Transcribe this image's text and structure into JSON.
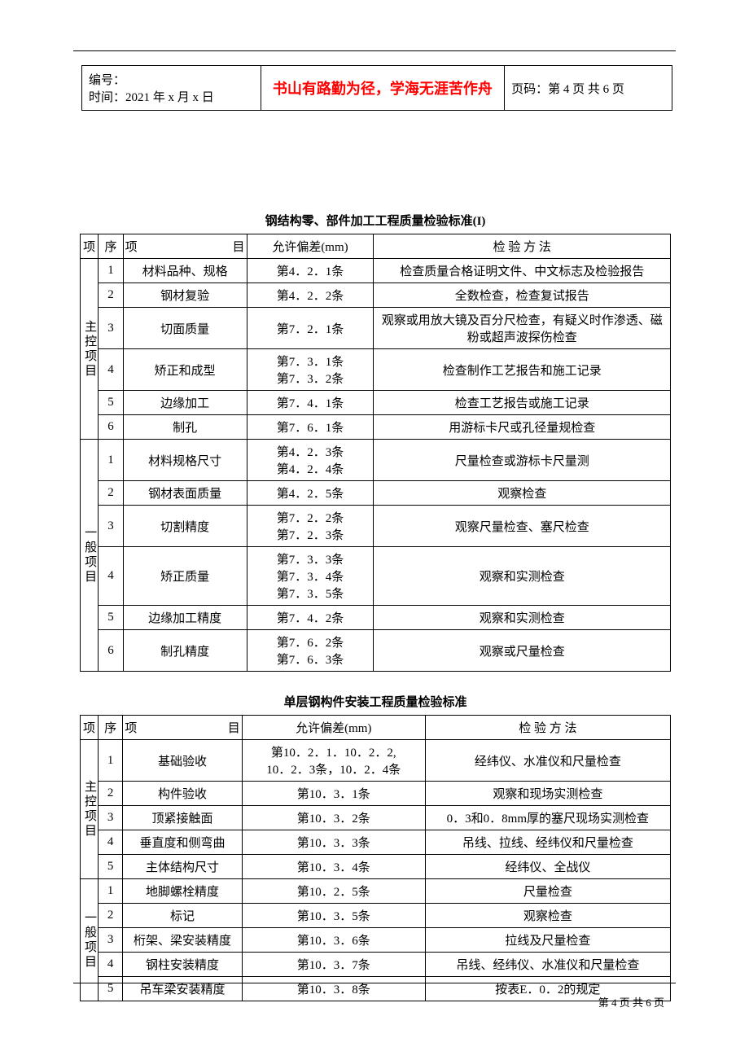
{
  "header": {
    "doc_id_label": "编号：",
    "time_label": "时间：2021 年 x 月 x 日",
    "motto": "书山有路勤为径，学海无涯苦作舟",
    "page_label": "页码：第 4 页 共 6 页"
  },
  "table1": {
    "title": "钢结构零、部件加工工程质量检验标准(I)",
    "headers": {
      "cat": "项",
      "seq": "序",
      "item": "项　　目",
      "dev": "允许偏差(mm)",
      "method": "检 验 方 法"
    },
    "cat1_label": "主控项目",
    "cat2_label": "一般项目",
    "group1": [
      {
        "seq": "1",
        "item": "材料品种、规格",
        "dev": "第4．2．1条",
        "method": "检查质量合格证明文件、中文标志及检验报告"
      },
      {
        "seq": "2",
        "item": "钢材复验",
        "dev": "第4．2．2条",
        "method": "全数检查，检查复试报告"
      },
      {
        "seq": "3",
        "item": "切面质量",
        "dev": "第7．2．1条",
        "method": "观察或用放大镜及百分尺检查，有疑义时作渗透、磁粉或超声波探伤检查"
      },
      {
        "seq": "4",
        "item": "矫正和成型",
        "dev": "第7．3．1条\n第7．3．2条",
        "method": "检查制作工艺报告和施工记录"
      },
      {
        "seq": "5",
        "item": "边缘加工",
        "dev": "第7．4．1条",
        "method": "检查工艺报告或施工记录"
      },
      {
        "seq": "6",
        "item": "制孔",
        "dev": "第7．6．1条",
        "method": "用游标卡尺或孔径量规检查"
      }
    ],
    "group2": [
      {
        "seq": "1",
        "item": "材料规格尺寸",
        "dev": "第4．2．3条\n第4．2．4条",
        "method": "尺量检查或游标卡尺量测"
      },
      {
        "seq": "2",
        "item": "钢材表面质量",
        "dev": "第4．2．5条",
        "method": "观察检查"
      },
      {
        "seq": "3",
        "item": "切割精度",
        "dev": "第7．2．2条\n第7．2．3条",
        "method": "观察尺量检查、塞尺检查"
      },
      {
        "seq": "4",
        "item": "矫正质量",
        "dev": "第7．3．3条\n第7．3．4条\n第7．3．5条",
        "method": "观察和实测检查"
      },
      {
        "seq": "5",
        "item": "边缘加工精度",
        "dev": "第7．4．2条",
        "method": "观察和实测检查"
      },
      {
        "seq": "6",
        "item": "制孔精度",
        "dev": "第7．6．2条\n第7．6．3条",
        "method": "观察或尺量检查"
      }
    ]
  },
  "table2": {
    "title": "单层钢构件安装工程质量检验标准",
    "headers": {
      "cat": "项",
      "seq": "序",
      "item": "项　　目",
      "dev": "允许偏差(mm)",
      "method": "检 验 方 法"
    },
    "cat1_label": "主控项目",
    "cat2_label": "一般项目",
    "group1": [
      {
        "seq": "1",
        "item": "基础验收",
        "dev": "第10．2．1．10．2．2,\n10．2．3条，10．2．4条",
        "method": "经纬仪、水准仪和尺量检查"
      },
      {
        "seq": "2",
        "item": "构件验收",
        "dev": "第10．3．1条",
        "method": "观察和现场实测检查"
      },
      {
        "seq": "3",
        "item": "顶紧接触面",
        "dev": "第10．3．2条",
        "method": "0．3和0．8mm厚的塞尺现场实测检查"
      },
      {
        "seq": "4",
        "item": "垂直度和侧弯曲",
        "dev": "第10．3．3条",
        "method": "吊线、拉线、经纬仪和尺量检查"
      },
      {
        "seq": "5",
        "item": "主体结构尺寸",
        "dev": "第10．3．4条",
        "method": "经纬仪、全战仪"
      }
    ],
    "group2": [
      {
        "seq": "1",
        "item": "地脚螺栓精度",
        "dev": "第10．2．5条",
        "method": "尺量检查"
      },
      {
        "seq": "2",
        "item": "标记",
        "dev": "第10．3．5条",
        "method": "观察检查"
      },
      {
        "seq": "3",
        "item": "桁架、梁安装精度",
        "dev": "第10．3．6条",
        "method": "拉线及尺量检查"
      },
      {
        "seq": "4",
        "item": "钢柱安装精度",
        "dev": "第10．3．7条",
        "method": "吊线、经纬仪、水准仪和尺量检查"
      },
      {
        "seq": "5",
        "item": "吊车梁安装精度",
        "dev": "第10．3．8条",
        "method": "按表E．0．2的规定"
      }
    ]
  },
  "footer": {
    "text": "第 4 页 共 6 页"
  }
}
